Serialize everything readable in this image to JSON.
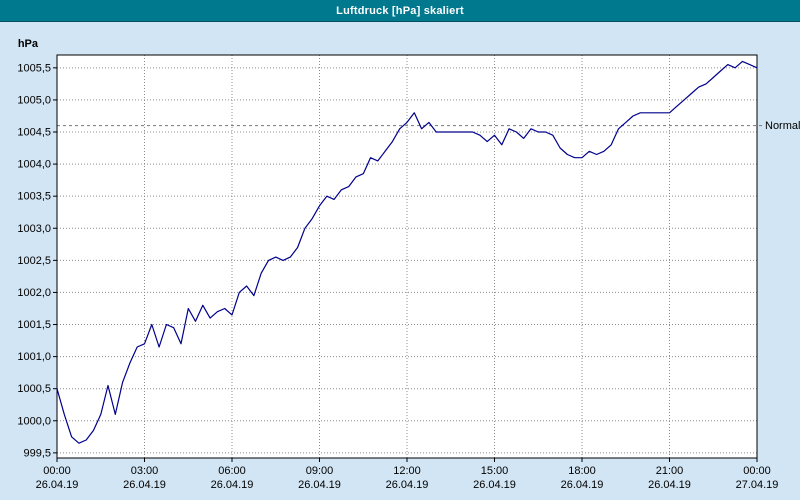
{
  "window": {
    "title": "Luftdruck [hPa] skaliert"
  },
  "colors": {
    "titlebar": "#00788e",
    "title_text": "#ffffff",
    "page_background": "#d2e5f4",
    "plot_background": "#ffffff",
    "plot_border": "#000000",
    "grid": "#8c8c8c",
    "line": "#00008b",
    "normal_line": "#777777",
    "axis_text": "#000000"
  },
  "chart_data": {
    "type": "line",
    "title": "Luftdruck [hPa] skaliert",
    "xlabel": "",
    "ylabel": "hPa",
    "series_name": "Luftdruck",
    "grid": true,
    "xlim": [
      0,
      24
    ],
    "ylim": [
      999.42,
      1005.7
    ],
    "x_start": 0,
    "x_step": 0.25,
    "yticks": [
      {
        "value": 999.5,
        "label": "999,5"
      },
      {
        "value": 1000.0,
        "label": "1000,0"
      },
      {
        "value": 1000.5,
        "label": "1000,5"
      },
      {
        "value": 1001.0,
        "label": "1001,0"
      },
      {
        "value": 1001.5,
        "label": "1001,5"
      },
      {
        "value": 1002.0,
        "label": "1002,0"
      },
      {
        "value": 1002.5,
        "label": "1002,5"
      },
      {
        "value": 1003.0,
        "label": "1003,0"
      },
      {
        "value": 1003.5,
        "label": "1003,5"
      },
      {
        "value": 1004.0,
        "label": "1004,0"
      },
      {
        "value": 1004.5,
        "label": "1004,5"
      },
      {
        "value": 1005.0,
        "label": "1005,0"
      },
      {
        "value": 1005.5,
        "label": "1005,5"
      }
    ],
    "xticks": [
      {
        "hour": 0,
        "time": "00:00",
        "date": "26.04.19"
      },
      {
        "hour": 3,
        "time": "03:00",
        "date": "26.04.19"
      },
      {
        "hour": 6,
        "time": "06:00",
        "date": "26.04.19"
      },
      {
        "hour": 9,
        "time": "09:00",
        "date": "26.04.19"
      },
      {
        "hour": 12,
        "time": "12:00",
        "date": "26.04.19"
      },
      {
        "hour": 15,
        "time": "15:00",
        "date": "26.04.19"
      },
      {
        "hour": 18,
        "time": "18:00",
        "date": "26.04.19"
      },
      {
        "hour": 21,
        "time": "21:00",
        "date": "26.04.19"
      },
      {
        "hour": 24,
        "time": "00:00",
        "date": "27.04.19"
      }
    ],
    "normal": {
      "label": "Normal",
      "value": 1004.6
    },
    "values": [
      1000.5,
      1000.1,
      999.75,
      999.65,
      999.7,
      999.85,
      1000.1,
      1000.55,
      1000.1,
      1000.6,
      1000.9,
      1001.15,
      1001.2,
      1001.5,
      1001.15,
      1001.5,
      1001.45,
      1001.2,
      1001.75,
      1001.55,
      1001.8,
      1001.6,
      1001.7,
      1001.75,
      1001.65,
      1002.0,
      1002.1,
      1001.95,
      1002.3,
      1002.5,
      1002.55,
      1002.5,
      1002.55,
      1002.7,
      1003.0,
      1003.15,
      1003.35,
      1003.5,
      1003.45,
      1003.6,
      1003.65,
      1003.8,
      1003.85,
      1004.1,
      1004.05,
      1004.2,
      1004.35,
      1004.55,
      1004.65,
      1004.8,
      1004.55,
      1004.65,
      1004.5,
      1004.5,
      1004.5,
      1004.5,
      1004.5,
      1004.5,
      1004.45,
      1004.35,
      1004.45,
      1004.3,
      1004.55,
      1004.5,
      1004.4,
      1004.55,
      1004.5,
      1004.5,
      1004.45,
      1004.25,
      1004.15,
      1004.1,
      1004.1,
      1004.2,
      1004.15,
      1004.2,
      1004.3,
      1004.55,
      1004.65,
      1004.75,
      1004.8,
      1004.8,
      1004.8,
      1004.8,
      1004.8,
      1004.9,
      1005.0,
      1005.1,
      1005.2,
      1005.25,
      1005.35,
      1005.45,
      1005.55,
      1005.5,
      1005.6,
      1005.55,
      1005.5
    ]
  }
}
